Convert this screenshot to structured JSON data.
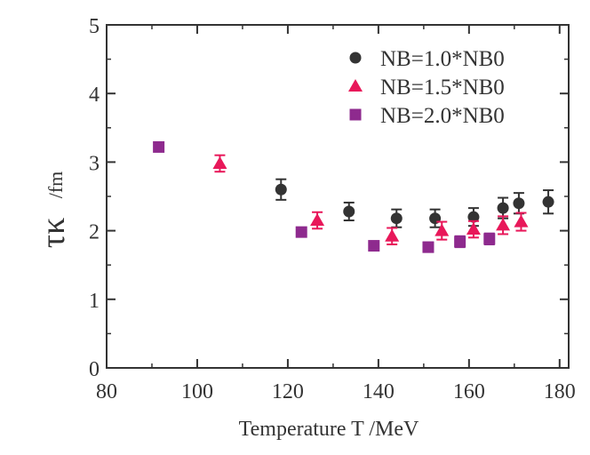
{
  "chart_data": {
    "type": "scatter",
    "title": "",
    "xlabel": "Temperature T /MeV",
    "ylabel": {
      "symbol": "τκ",
      "unit": "/fm"
    },
    "xlim": [
      80,
      182
    ],
    "ylim": [
      0,
      5
    ],
    "xticks": [
      80,
      100,
      120,
      140,
      160,
      180
    ],
    "yticks": [
      0,
      1,
      2,
      3,
      4,
      5
    ],
    "grid": false,
    "legend_position": "top-right",
    "series": [
      {
        "name": "NB=1.0*NB0",
        "marker": "circle",
        "color": "#333333",
        "points": [
          {
            "x": 118.5,
            "y": 2.6,
            "err": 0.15
          },
          {
            "x": 133.5,
            "y": 2.28,
            "err": 0.13
          },
          {
            "x": 144.0,
            "y": 2.18,
            "err": 0.13
          },
          {
            "x": 152.5,
            "y": 2.18,
            "err": 0.13
          },
          {
            "x": 161.0,
            "y": 2.2,
            "err": 0.13
          },
          {
            "x": 167.5,
            "y": 2.33,
            "err": 0.15
          },
          {
            "x": 171.0,
            "y": 2.4,
            "err": 0.15
          },
          {
            "x": 177.5,
            "y": 2.42,
            "err": 0.17
          }
        ]
      },
      {
        "name": "NB=1.5*NB0",
        "marker": "triangle",
        "color": "#e8185a",
        "points": [
          {
            "x": 105.0,
            "y": 2.98,
            "err": 0.12
          },
          {
            "x": 126.5,
            "y": 2.15,
            "err": 0.12
          },
          {
            "x": 143.0,
            "y": 1.92,
            "err": 0.12
          },
          {
            "x": 154.0,
            "y": 2.0,
            "err": 0.13
          },
          {
            "x": 161.0,
            "y": 2.02,
            "err": 0.12
          },
          {
            "x": 167.5,
            "y": 2.08,
            "err": 0.13
          },
          {
            "x": 171.5,
            "y": 2.13,
            "err": 0.13
          }
        ]
      },
      {
        "name": "NB=2.0*NB0",
        "marker": "square",
        "color": "#8e2a8e",
        "points": [
          {
            "x": 91.5,
            "y": 3.22,
            "err": 0.05
          },
          {
            "x": 123.0,
            "y": 1.98,
            "err": 0.05
          },
          {
            "x": 139.0,
            "y": 1.78,
            "err": 0.06
          },
          {
            "x": 151.0,
            "y": 1.76,
            "err": 0.07
          },
          {
            "x": 158.0,
            "y": 1.84,
            "err": 0.08
          },
          {
            "x": 164.5,
            "y": 1.88,
            "err": 0.08
          }
        ]
      }
    ]
  }
}
